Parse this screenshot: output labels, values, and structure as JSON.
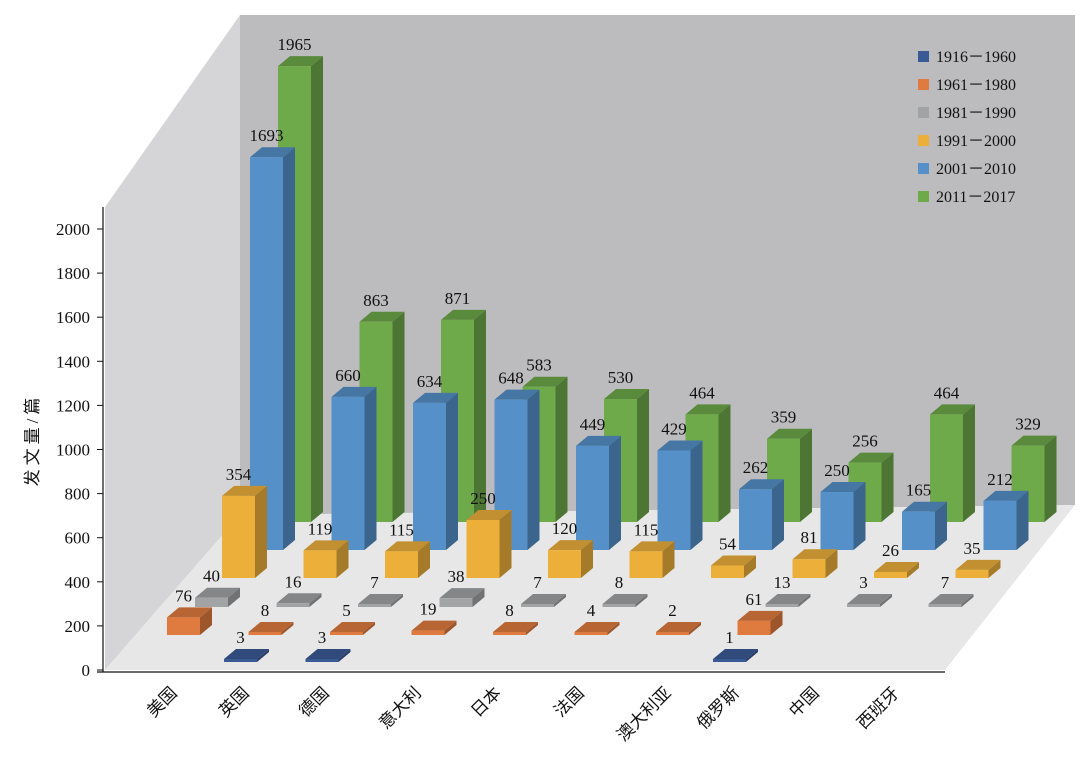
{
  "chart_data": {
    "type": "bar",
    "style": "3d-column",
    "title": "",
    "xlabel": "",
    "ylabel": "发文量/篇",
    "ylim": [
      0,
      2000
    ],
    "yticks": [
      0,
      200,
      400,
      600,
      800,
      1000,
      1200,
      1400,
      1600,
      1800,
      2000
    ],
    "categories": [
      "美国",
      "英国",
      "德国",
      "意大利",
      "日本",
      "法国",
      "澳大利亚",
      "俄罗斯",
      "中国",
      "西班牙"
    ],
    "legend_position": "top-right",
    "series": [
      {
        "name": "1916－1960",
        "color": "#3a5a96",
        "values": [
          3,
          3,
          null,
          null,
          null,
          null,
          1,
          null,
          null,
          null
        ]
      },
      {
        "name": "1961－1980",
        "color": "#e07b3f",
        "values": [
          76,
          8,
          5,
          19,
          8,
          4,
          2,
          61,
          null,
          null
        ]
      },
      {
        "name": "1981－1990",
        "color": "#a1a3a5",
        "values": [
          40,
          16,
          7,
          38,
          7,
          8,
          null,
          13,
          3,
          7
        ]
      },
      {
        "name": "1991－2000",
        "color": "#ecb03a",
        "values": [
          354,
          119,
          115,
          250,
          120,
          115,
          54,
          81,
          26,
          35
        ]
      },
      {
        "name": "2001－2010",
        "color": "#5590c8",
        "values": [
          1693,
          660,
          634,
          648,
          449,
          429,
          262,
          250,
          165,
          212
        ]
      },
      {
        "name": "2011－2017",
        "color": "#6ea94a",
        "values": [
          1965,
          863,
          871,
          583,
          530,
          464,
          359,
          256,
          464,
          329
        ]
      }
    ]
  }
}
